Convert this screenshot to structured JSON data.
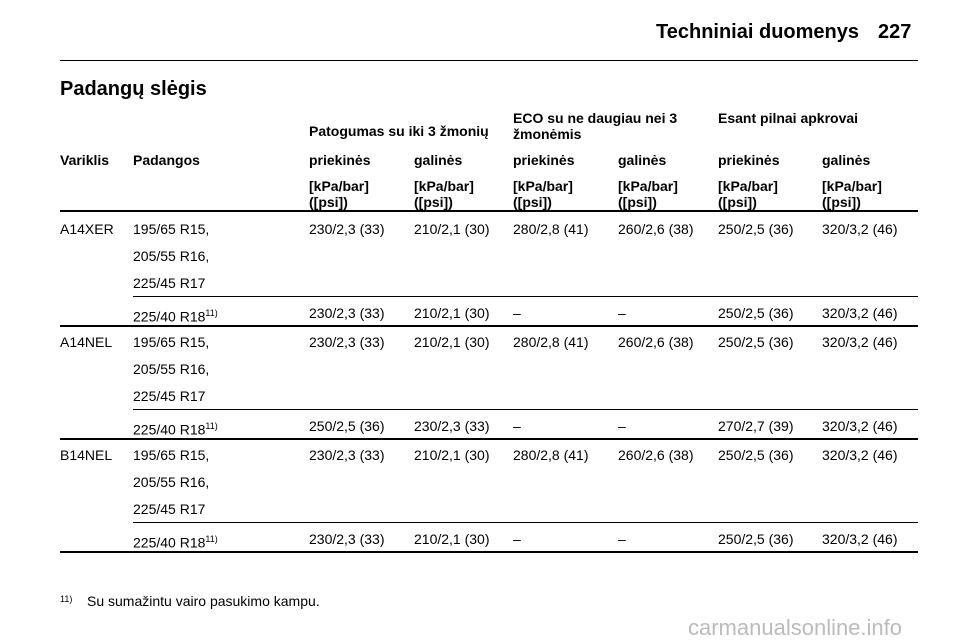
{
  "header": {
    "section": "Techniniai duomenys",
    "page": "227"
  },
  "title": "Padangų slėgis",
  "table": {
    "group_headers": [
      "Patogumas su iki 3 žmonių",
      "ECO su ne daugiau nei 3 žmonėmis",
      "Esant pilnai apkrovai"
    ],
    "columns": [
      "Variklis",
      "Padangos",
      "priekinės",
      "galinės",
      "priekinės",
      "galinės",
      "priekinės",
      "galinės"
    ],
    "units": [
      "[kPa/bar] ([psi])",
      "[kPa/bar] ([psi])",
      "[kPa/bar] ([psi])",
      "[kPa/bar] ([psi])",
      "[kPa/bar] ([psi])",
      "[kPa/bar] ([psi])"
    ],
    "rows": [
      {
        "engine": "A14XER",
        "sub": [
          {
            "tires": [
              "195/65 R15,",
              "205/55 R16,",
              "225/45 R17"
            ],
            "values": [
              "230/2,3 (33)",
              "210/2,1 (30)",
              "280/2,8 (41)",
              "260/2,6 (38)",
              "250/2,5 (36)",
              "320/3,2 (46)"
            ]
          },
          {
            "tires": [
              "225/40 R18"
            ],
            "note": "11)",
            "values": [
              "230/2,3 (33)",
              "210/2,1 (30)",
              "–",
              "–",
              "250/2,5 (36)",
              "320/3,2 (46)"
            ]
          }
        ]
      },
      {
        "engine": "A14NEL",
        "sub": [
          {
            "tires": [
              "195/65 R15,",
              "205/55 R16,",
              "225/45 R17"
            ],
            "values": [
              "230/2,3 (33)",
              "210/2,1 (30)",
              "280/2,8 (41)",
              "260/2,6 (38)",
              "250/2,5 (36)",
              "320/3,2 (46)"
            ]
          },
          {
            "tires": [
              "225/40 R18"
            ],
            "note": "11)",
            "values": [
              "250/2,5 (36)",
              "230/2,3 (33)",
              "–",
              "–",
              "270/2,7 (39)",
              "320/3,2 (46)"
            ]
          }
        ]
      },
      {
        "engine": "B14NEL",
        "sub": [
          {
            "tires": [
              "195/65 R15,",
              "205/55 R16,",
              "225/45 R17"
            ],
            "values": [
              "230/2,3 (33)",
              "210/2,1 (30)",
              "280/2,8 (41)",
              "260/2,6 (38)",
              "250/2,5 (36)",
              "320/3,2 (46)"
            ]
          },
          {
            "tires": [
              "225/40 R18"
            ],
            "note": "11)",
            "values": [
              "230/2,3 (33)",
              "210/2,1 (30)",
              "–",
              "–",
              "250/2,5 (36)",
              "320/3,2 (46)"
            ]
          }
        ]
      }
    ]
  },
  "footnote": {
    "mark": "11)",
    "text": "Su sumažintu vairo pasukimo kampu."
  },
  "watermark": "carmanualsonline.info"
}
